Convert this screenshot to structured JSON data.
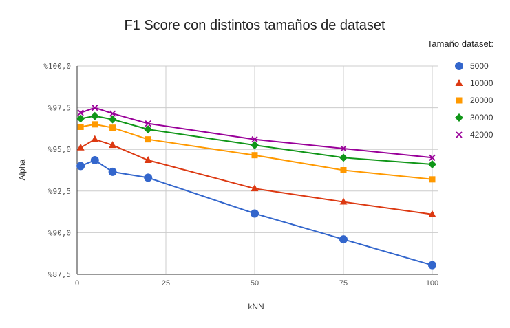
{
  "chart_data": {
    "type": "line",
    "title": "F1 Score con distintos tamaños de dataset",
    "xlabel": "kNN",
    "ylabel": "Alpha",
    "xlim": [
      0,
      100
    ],
    "ylim": [
      87.5,
      100
    ],
    "x_ticks": [
      "0",
      "25",
      "50",
      "75",
      "100"
    ],
    "y_ticks": [
      "%87,5",
      "%90,0",
      "%92,5",
      "%95,0",
      "%97,5",
      "%100,0"
    ],
    "grid": true,
    "legend": {
      "title": "Tamaño dataset:",
      "position": "right"
    },
    "x": [
      1,
      5,
      10,
      20,
      50,
      75,
      100
    ],
    "series": [
      {
        "name": "5000",
        "color": "#3366cc",
        "marker": "circle",
        "values": [
          94.0,
          94.35,
          93.65,
          93.3,
          91.15,
          89.6,
          88.05
        ]
      },
      {
        "name": "10000",
        "color": "#dc3912",
        "marker": "triangle",
        "values": [
          95.1,
          95.6,
          95.25,
          94.35,
          92.65,
          91.85,
          91.1
        ]
      },
      {
        "name": "20000",
        "color": "#ff9900",
        "marker": "square",
        "values": [
          96.35,
          96.5,
          96.3,
          95.6,
          94.65,
          93.75,
          93.2
        ]
      },
      {
        "name": "30000",
        "color": "#109618",
        "marker": "diamond",
        "values": [
          96.85,
          97.0,
          96.8,
          96.2,
          95.25,
          94.5,
          94.1
        ]
      },
      {
        "name": "42000",
        "color": "#990099",
        "marker": "x",
        "values": [
          97.2,
          97.5,
          97.15,
          96.55,
          95.6,
          95.05,
          94.5
        ]
      }
    ]
  }
}
